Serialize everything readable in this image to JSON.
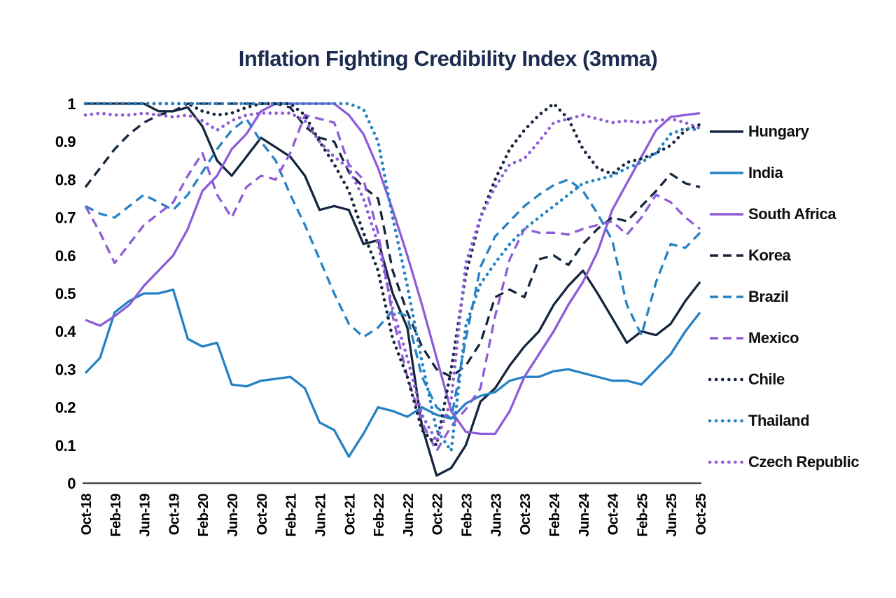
{
  "title": "Inflation Fighting Credibility Index (3mma)",
  "colors": {
    "navy": "#15253d",
    "blue": "#2482c4",
    "purple": "#8d5cd8",
    "axis": "#4a4a4a",
    "text": "#000000",
    "title_text": "#1b2c50"
  },
  "chart_data": {
    "type": "line",
    "title": "Inflation Fighting Credibility Index (3mma)",
    "xlabel": "",
    "ylabel": "",
    "ylim": [
      0,
      1
    ],
    "grid": false,
    "legend_position": "right",
    "y_ticks": [
      "1",
      "0.9",
      "0.8",
      "0.7",
      "0.6",
      "0.5",
      "0.4",
      "0.3",
      "0.2",
      "0.1",
      "0"
    ],
    "x_tick_labels": [
      "Oct-18",
      "Feb-19",
      "Jun-19",
      "Oct-19",
      "Feb-20",
      "Jun-20",
      "Oct-20",
      "Feb-21",
      "Jun-21",
      "Oct-21",
      "Feb-22",
      "Jun-22",
      "Oct-22",
      "Feb-23",
      "Jun-23",
      "Oct-23",
      "Feb-24",
      "Jun-24",
      "Oct-24",
      "Feb-25",
      "Jun-25",
      "Oct-25"
    ],
    "x": [
      "Oct-18",
      "Dec-18",
      "Feb-19",
      "Apr-19",
      "Jun-19",
      "Aug-19",
      "Oct-19",
      "Dec-19",
      "Feb-20",
      "Apr-20",
      "Jun-20",
      "Aug-20",
      "Oct-20",
      "Dec-20",
      "Feb-21",
      "Apr-21",
      "Jun-21",
      "Aug-21",
      "Oct-21",
      "Dec-21",
      "Feb-22",
      "Apr-22",
      "Jun-22",
      "Aug-22",
      "Oct-22",
      "Dec-22",
      "Feb-23",
      "Apr-23",
      "Jun-23",
      "Aug-23",
      "Oct-23",
      "Dec-23",
      "Feb-24",
      "Apr-24",
      "Jun-24",
      "Aug-24",
      "Oct-24",
      "Dec-24",
      "Feb-25",
      "Apr-25",
      "Jun-25",
      "Aug-25",
      "Oct-25"
    ],
    "series": [
      {
        "name": "Hungary",
        "color": "navy",
        "style": "solid",
        "values": [
          1,
          1,
          1,
          1,
          1,
          0.98,
          0.98,
          0.99,
          0.94,
          0.85,
          0.81,
          0.86,
          0.91,
          0.885,
          0.86,
          0.81,
          0.72,
          0.73,
          0.72,
          0.63,
          0.64,
          0.5,
          0.41,
          0.15,
          0.02,
          0.04,
          0.1,
          0.215,
          0.25,
          0.31,
          0.36,
          0.4,
          0.47,
          0.52,
          0.56,
          0.5,
          0.435,
          0.37,
          0.4,
          0.39,
          0.42,
          0.48,
          0.53
        ]
      },
      {
        "name": "India",
        "color": "blue",
        "style": "solid",
        "values": [
          0.29,
          0.33,
          0.45,
          0.48,
          0.5,
          0.5,
          0.51,
          0.38,
          0.36,
          0.37,
          0.26,
          0.255,
          0.27,
          0.275,
          0.28,
          0.25,
          0.16,
          0.14,
          0.07,
          0.13,
          0.2,
          0.19,
          0.175,
          0.2,
          0.18,
          0.17,
          0.21,
          0.23,
          0.24,
          0.27,
          0.28,
          0.28,
          0.295,
          0.3,
          0.29,
          0.28,
          0.27,
          0.27,
          0.26,
          0.3,
          0.34,
          0.4,
          0.45
        ]
      },
      {
        "name": "South Africa",
        "color": "purple",
        "style": "solid",
        "values": [
          0.43,
          0.415,
          0.44,
          0.47,
          0.52,
          0.56,
          0.6,
          0.67,
          0.77,
          0.81,
          0.88,
          0.92,
          0.98,
          1,
          1,
          1,
          1,
          1,
          0.97,
          0.92,
          0.83,
          0.72,
          0.6,
          0.47,
          0.33,
          0.19,
          0.135,
          0.13,
          0.13,
          0.19,
          0.28,
          0.34,
          0.4,
          0.47,
          0.53,
          0.61,
          0.72,
          0.79,
          0.86,
          0.93,
          0.965,
          0.97,
          0.975
        ]
      },
      {
        "name": "Korea",
        "color": "navy",
        "style": "dashed",
        "values": [
          0.78,
          0.83,
          0.88,
          0.92,
          0.95,
          0.97,
          0.98,
          1,
          1,
          1,
          1,
          1,
          1,
          1,
          0.99,
          0.94,
          0.91,
          0.9,
          0.82,
          0.78,
          0.75,
          0.56,
          0.45,
          0.36,
          0.3,
          0.28,
          0.31,
          0.37,
          0.49,
          0.51,
          0.49,
          0.59,
          0.6,
          0.575,
          0.63,
          0.67,
          0.7,
          0.69,
          0.73,
          0.77,
          0.815,
          0.79,
          0.78
        ]
      },
      {
        "name": "Brazil",
        "color": "blue",
        "style": "dashed",
        "values": [
          0.73,
          0.71,
          0.7,
          0.73,
          0.76,
          0.74,
          0.72,
          0.76,
          0.82,
          0.88,
          0.93,
          0.96,
          0.9,
          0.85,
          0.76,
          0.68,
          0.59,
          0.5,
          0.42,
          0.385,
          0.41,
          0.455,
          0.44,
          0.28,
          0.2,
          0.17,
          0.38,
          0.57,
          0.65,
          0.69,
          0.73,
          0.76,
          0.785,
          0.8,
          0.77,
          0.71,
          0.64,
          0.47,
          0.39,
          0.53,
          0.63,
          0.62,
          0.66
        ]
      },
      {
        "name": "Mexico",
        "color": "purple",
        "style": "dashed",
        "values": [
          0.73,
          0.66,
          0.58,
          0.63,
          0.68,
          0.71,
          0.74,
          0.81,
          0.87,
          0.76,
          0.7,
          0.78,
          0.81,
          0.8,
          0.87,
          0.97,
          0.96,
          0.95,
          0.84,
          0.8,
          0.66,
          0.44,
          0.28,
          0.16,
          0.085,
          0.15,
          0.195,
          0.25,
          0.44,
          0.59,
          0.67,
          0.66,
          0.66,
          0.655,
          0.67,
          0.68,
          0.69,
          0.655,
          0.7,
          0.76,
          0.74,
          0.7,
          0.67
        ]
      },
      {
        "name": "Chile",
        "color": "navy",
        "style": "dotted",
        "values": [
          1,
          1,
          1,
          1,
          1,
          1,
          1,
          1,
          0.98,
          0.97,
          0.975,
          0.99,
          1,
          1,
          1,
          0.97,
          0.9,
          0.84,
          0.77,
          0.66,
          0.56,
          0.38,
          0.28,
          0.14,
          0.1,
          0.3,
          0.55,
          0.7,
          0.8,
          0.88,
          0.93,
          0.97,
          1,
          0.96,
          0.88,
          0.83,
          0.815,
          0.845,
          0.855,
          0.87,
          0.89,
          0.93,
          0.945
        ]
      },
      {
        "name": "Thailand",
        "color": "blue",
        "style": "dotted",
        "values": [
          1,
          1,
          1,
          1,
          1,
          1,
          1,
          1,
          1,
          1,
          1,
          1,
          1,
          1,
          1,
          1,
          1,
          1,
          1,
          0.985,
          0.9,
          0.7,
          0.52,
          0.32,
          0.14,
          0.085,
          0.415,
          0.525,
          0.58,
          0.63,
          0.67,
          0.7,
          0.73,
          0.76,
          0.79,
          0.8,
          0.81,
          0.83,
          0.845,
          0.87,
          0.92,
          0.935,
          0.93
        ]
      },
      {
        "name": "Czech Republic",
        "color": "purple",
        "style": "dotted",
        "values": [
          0.97,
          0.975,
          0.97,
          0.97,
          0.975,
          0.97,
          0.965,
          0.97,
          0.955,
          0.93,
          0.955,
          0.97,
          0.975,
          0.975,
          0.975,
          0.955,
          0.9,
          0.86,
          0.83,
          0.75,
          0.63,
          0.46,
          0.33,
          0.18,
          0.11,
          0.22,
          0.58,
          0.7,
          0.78,
          0.84,
          0.855,
          0.9,
          0.95,
          0.96,
          0.97,
          0.96,
          0.95,
          0.955,
          0.95,
          0.955,
          0.96,
          0.95,
          0.935
        ]
      }
    ]
  }
}
